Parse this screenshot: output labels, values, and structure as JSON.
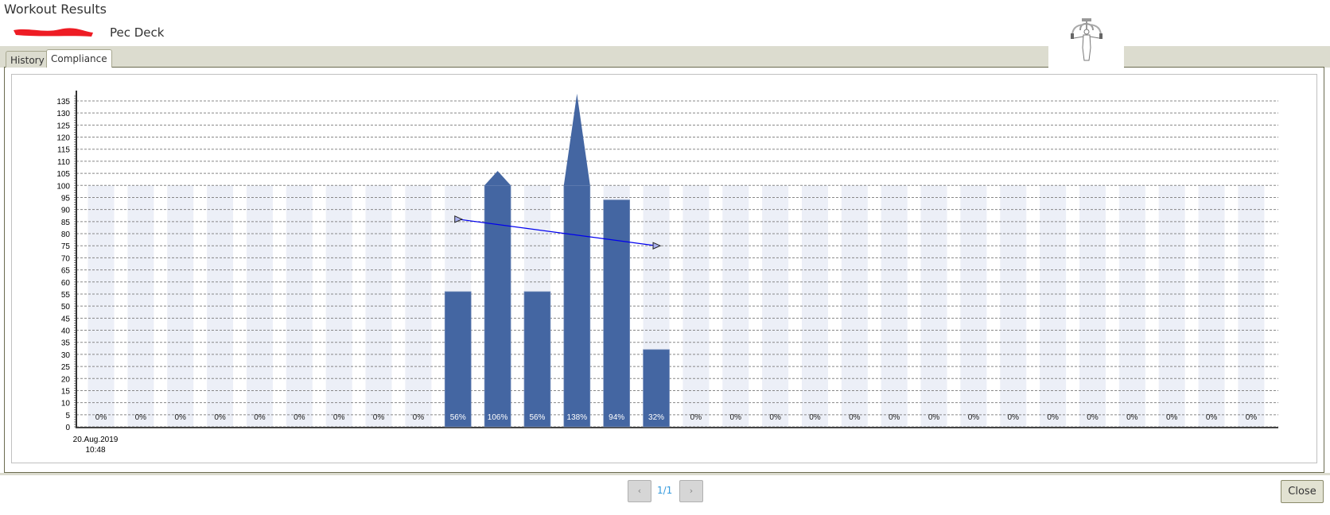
{
  "window": {
    "title": "Workout Results",
    "exercise": "Pec Deck",
    "exercise_image": "pec-deck-figure"
  },
  "tabs": [
    {
      "label": "History",
      "active": false
    },
    {
      "label": "Compliance",
      "active": true
    }
  ],
  "pager": {
    "prev_icon": "chevron-left-icon",
    "label": "1/1",
    "next_icon": "chevron-right-icon"
  },
  "close_label": "Close",
  "colors": {
    "bar": "#4466a2",
    "background_bar": "#eceff7",
    "trend": "#0000ee"
  },
  "chart_data": {
    "type": "bar",
    "ylim": [
      0,
      135
    ],
    "yticks": [
      0,
      5,
      10,
      15,
      20,
      25,
      30,
      35,
      40,
      45,
      50,
      55,
      60,
      65,
      70,
      75,
      80,
      85,
      90,
      95,
      100,
      105,
      110,
      115,
      120,
      125,
      130,
      135
    ],
    "grid": true,
    "first_category_label": [
      "20.Aug.2019",
      "10:48"
    ],
    "values": [
      0,
      0,
      0,
      0,
      0,
      0,
      0,
      0,
      0,
      56,
      106,
      56,
      138,
      94,
      32,
      0,
      0,
      0,
      0,
      0,
      0,
      0,
      0,
      0,
      0,
      0,
      0,
      0,
      0,
      0
    ],
    "data_labels": [
      "0%",
      "0%",
      "0%",
      "0%",
      "0%",
      "0%",
      "0%",
      "0%",
      "0%",
      "56%",
      "106%",
      "56%",
      "138%",
      "94%",
      "32%",
      "0%",
      "0%",
      "0%",
      "0%",
      "0%",
      "0%",
      "0%",
      "0%",
      "0%",
      "0%",
      "0%",
      "0%",
      "0%",
      "0%",
      "0%"
    ],
    "target": 100,
    "trend": {
      "from_bar": 10,
      "to_bar": 15,
      "start": 86,
      "end": 75
    }
  }
}
